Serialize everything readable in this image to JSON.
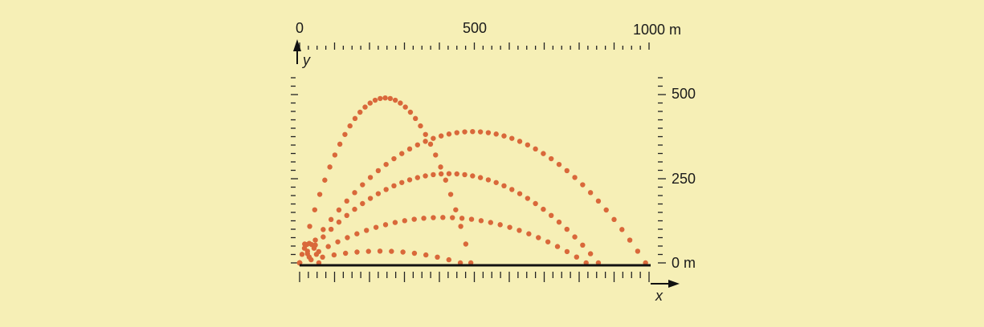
{
  "top_axis": {
    "labels": [
      "0",
      "500",
      "1000 m"
    ]
  },
  "right_axis": {
    "labels": [
      "500",
      "250",
      "0 m"
    ]
  },
  "axis_names": {
    "y": "y",
    "x": "x"
  }
}
